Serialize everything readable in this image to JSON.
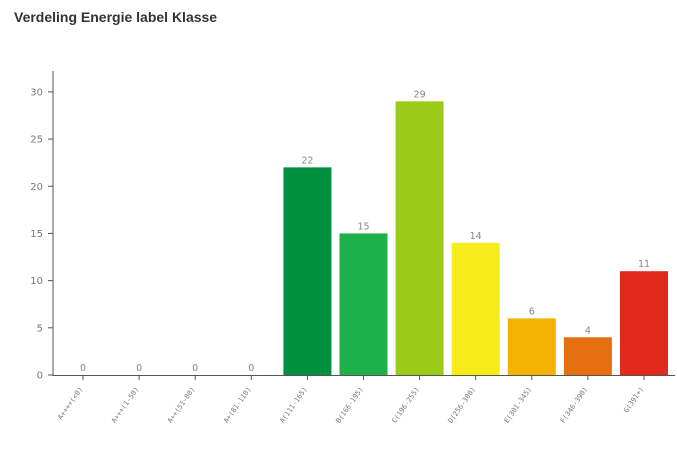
{
  "chart_data": {
    "type": "bar",
    "title": "Verdeling Energie label Klasse",
    "xlabel": "",
    "ylabel": "",
    "ylim": [
      0,
      32
    ],
    "yticks": [
      0,
      5,
      10,
      15,
      20,
      25,
      30
    ],
    "grid": false,
    "categories": [
      "A++++(<0)",
      "A+++(1-50)",
      "A++(51-80)",
      "A+(81-110)",
      "A(111-165)",
      "B(166-195)",
      "C(196-255)",
      "D(256-300)",
      "E(301-345)",
      "F(346-390)",
      "G(391+)"
    ],
    "values": [
      0,
      0,
      0,
      0,
      22,
      15,
      29,
      14,
      6,
      4,
      11
    ],
    "colors": [
      "#009140",
      "#009140",
      "#009140",
      "#009140",
      "#009140",
      "#1eb04a",
      "#9dcb1a",
      "#f6ec1c",
      "#f3b100",
      "#e57010",
      "#e02a1b"
    ]
  }
}
